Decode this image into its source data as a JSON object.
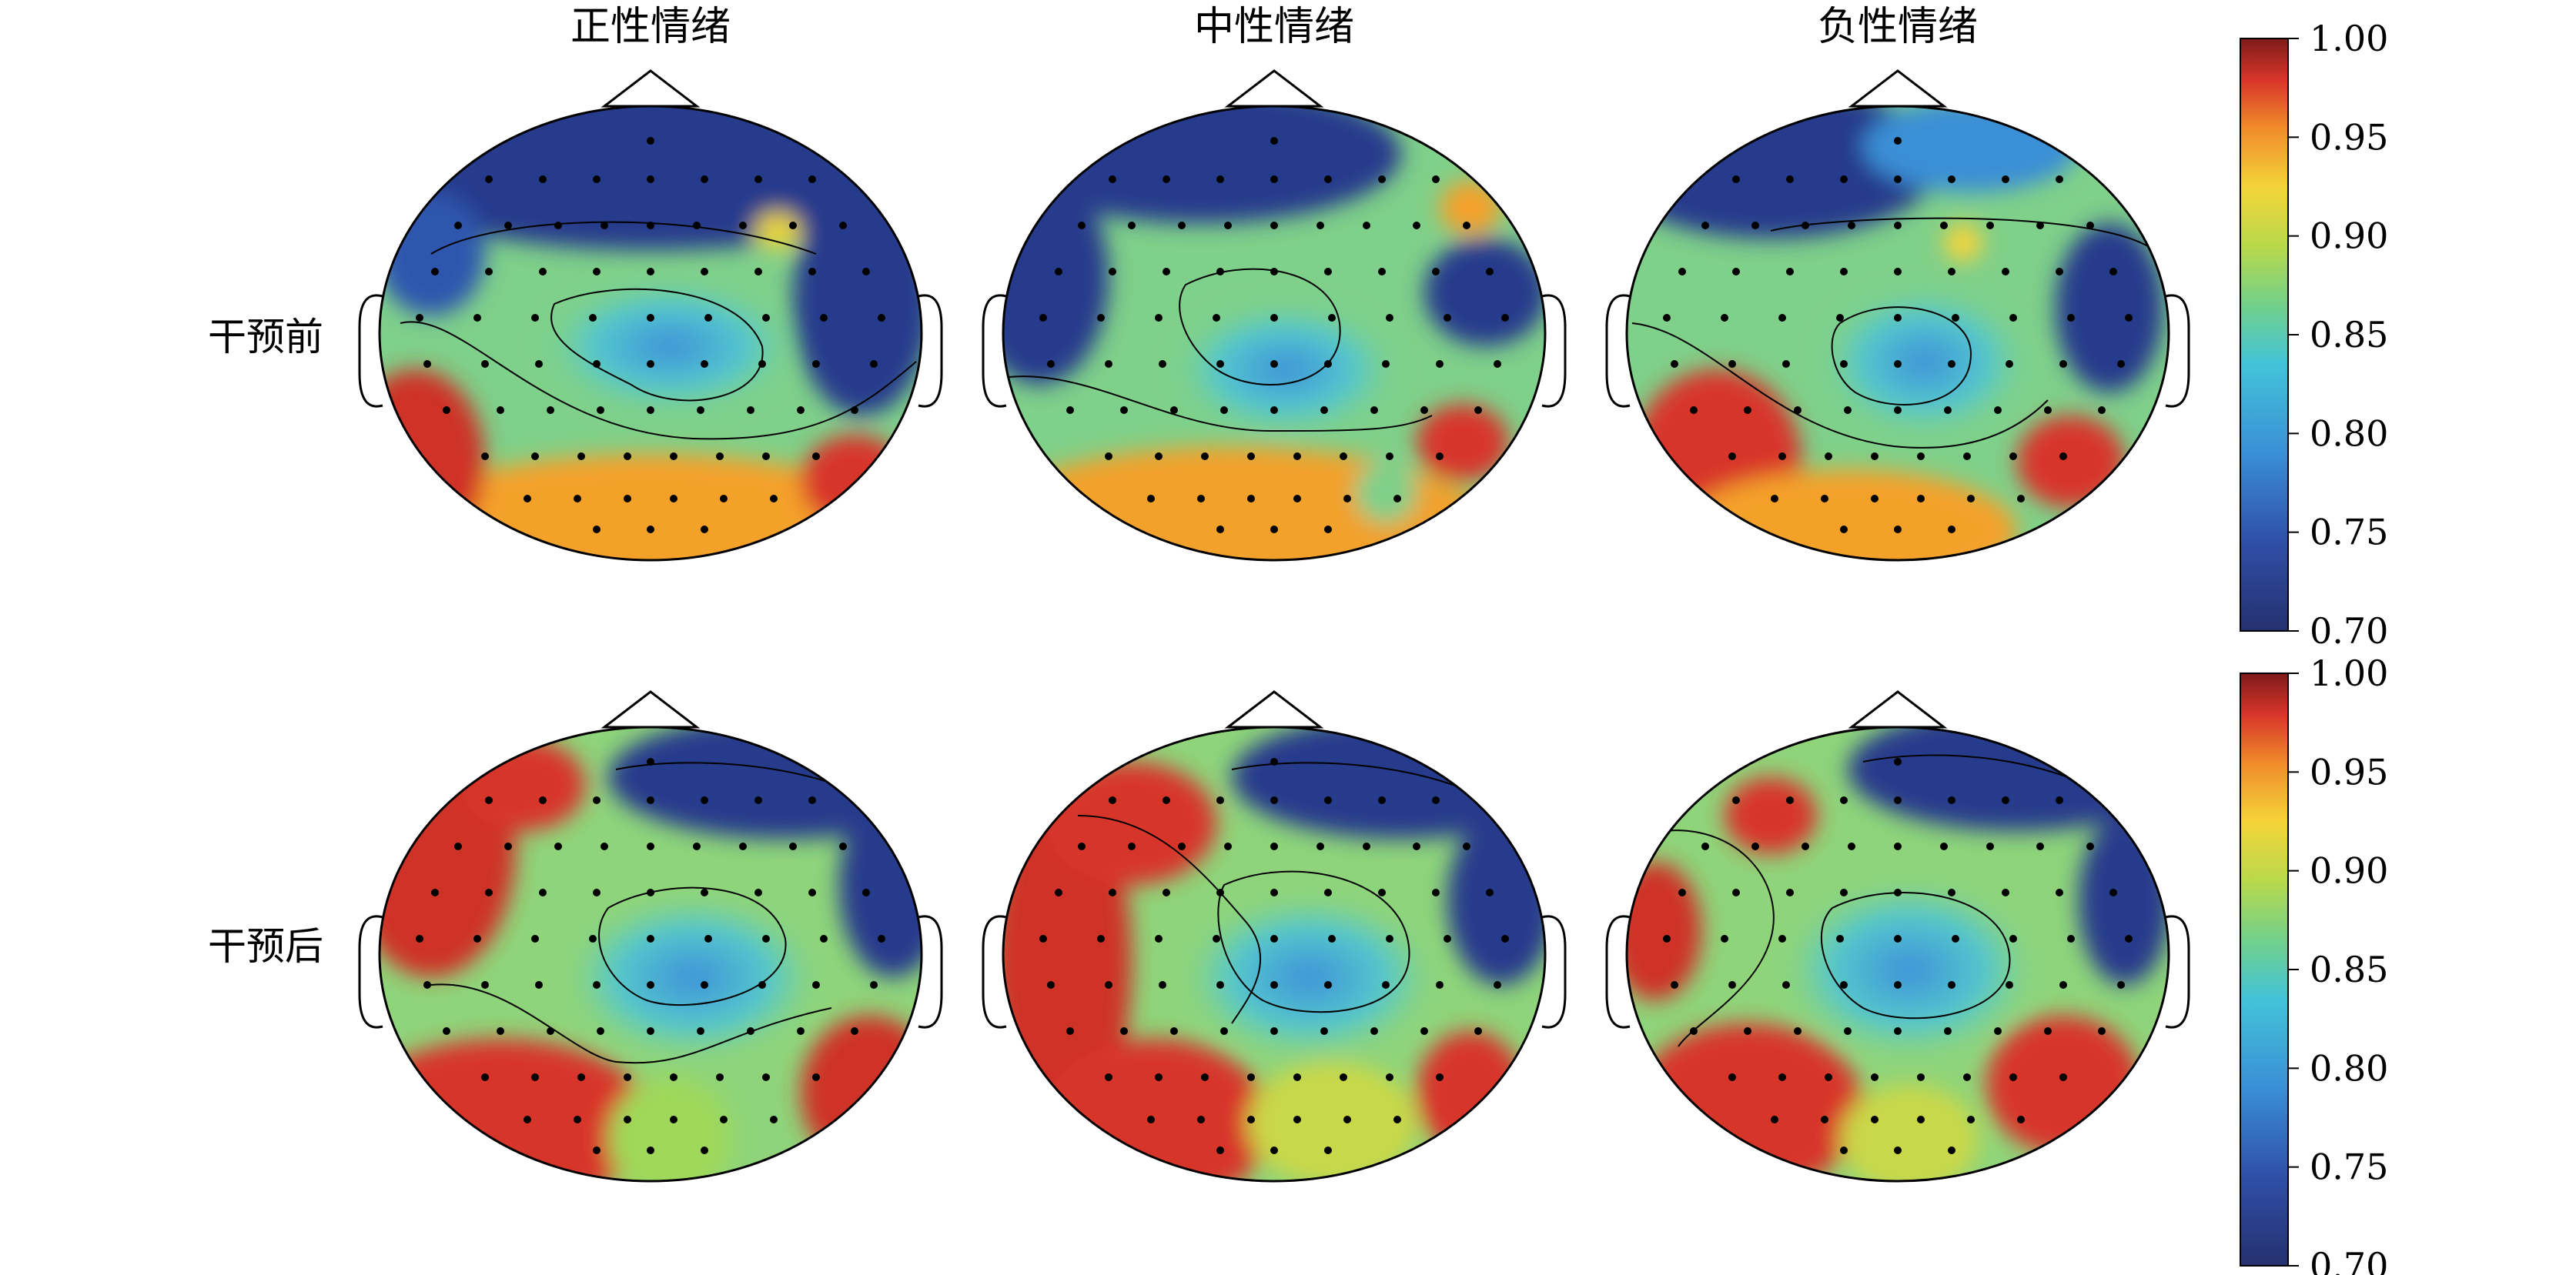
{
  "column_titles": [
    "正性情绪",
    "中性情绪",
    "负性情绪"
  ],
  "row_labels": [
    "干预前",
    "干预后"
  ],
  "colorbars": [
    {
      "name": "top",
      "ticks": [
        "1.00",
        "0.95",
        "0.90",
        "0.85",
        "0.80",
        "0.75",
        "0.70"
      ]
    },
    {
      "name": "bottom",
      "ticks": [
        "1.00",
        "0.95",
        "0.90",
        "0.85",
        "0.80",
        "0.75",
        "0.70"
      ]
    }
  ],
  "scale": {
    "min": 0.7,
    "max": 1.0
  },
  "colormap": [
    "#00008f",
    "#0000ff",
    "#00ffff",
    "#ffff00",
    "#ff0000",
    "#800000"
  ]
}
